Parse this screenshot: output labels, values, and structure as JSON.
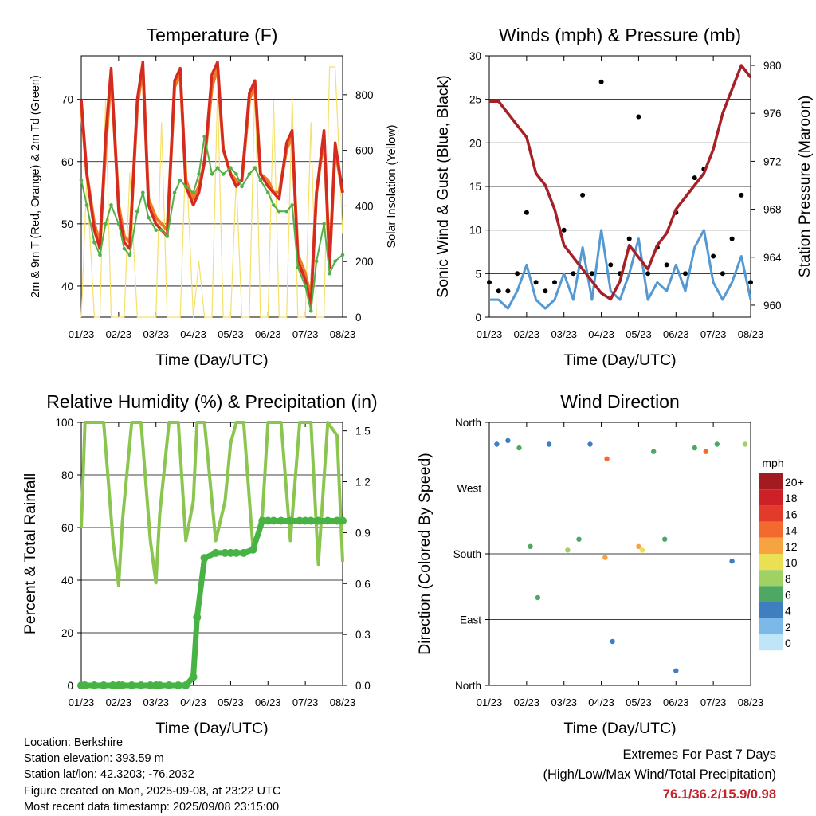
{
  "x_tick_labels": [
    "01/23",
    "02/23",
    "03/23",
    "04/23",
    "05/23",
    "06/23",
    "07/23",
    "08/23"
  ],
  "colors": {
    "temp2m": "#d42a20",
    "temp9m": "#f07a24",
    "dewpoint": "#52b04a",
    "solar": "#f5e06a",
    "wind": "#5599d3",
    "gust": "#000000",
    "pressure": "#a52127",
    "rh": "#8ac64f",
    "precip": "#47b344"
  },
  "chart_data": [
    {
      "id": "temperature",
      "type": "line",
      "title": "Temperature (F)",
      "xlabel": "Time (Day/UTC)",
      "ylabel": "2m & 9m T (Red, Orange) & 2m Td (Green)",
      "y2label": "Solar Insolation (Yellow)",
      "ylim": [
        35,
        77
      ],
      "y2lim": [
        0,
        940
      ],
      "yticks": [
        40,
        50,
        60,
        70
      ],
      "y2ticks": [
        0,
        200,
        400,
        600,
        800
      ],
      "x": [
        0,
        0.15,
        0.35,
        0.5,
        0.65,
        0.8,
        1.0,
        1.15,
        1.3,
        1.5,
        1.65,
        1.8,
        2.0,
        2.15,
        2.3,
        2.5,
        2.65,
        2.8,
        3.0,
        3.15,
        3.3,
        3.5,
        3.65,
        3.8,
        4.0,
        4.15,
        4.3,
        4.5,
        4.65,
        4.8,
        5.0,
        5.15,
        5.3,
        5.5,
        5.65,
        5.8,
        6.0,
        6.15,
        6.3,
        6.5,
        6.65,
        6.8,
        7.0
      ],
      "series": [
        {
          "name": "2m T",
          "values": [
            70,
            58,
            49,
            46,
            64,
            75,
            52,
            47,
            46,
            70,
            76,
            53,
            50,
            49,
            48,
            73,
            75,
            56,
            53,
            55,
            60,
            74,
            76,
            62,
            58,
            56,
            57,
            71,
            73,
            58,
            56,
            55,
            54,
            63,
            65,
            44,
            41,
            37,
            55,
            65,
            43,
            63,
            55
          ]
        },
        {
          "name": "9m T",
          "values": [
            69,
            58,
            50,
            47,
            62,
            74,
            53,
            48,
            47,
            69,
            75,
            54,
            51,
            50,
            49,
            72,
            74,
            57,
            54,
            56,
            60,
            72,
            75,
            62,
            58,
            57,
            57,
            70,
            72,
            58,
            57,
            55,
            55,
            62,
            64,
            45,
            42,
            38,
            55,
            64,
            44,
            62,
            55
          ]
        },
        {
          "name": "2m Td",
          "values": [
            57,
            53,
            47,
            45,
            50,
            53,
            50,
            46,
            45,
            52,
            55,
            51,
            49,
            49,
            48,
            55,
            57,
            56,
            55,
            58,
            64,
            58,
            59,
            58,
            59,
            58,
            56,
            58,
            59,
            57,
            55,
            53,
            52,
            52,
            53,
            43,
            40,
            36,
            44,
            50,
            42,
            44,
            45
          ]
        },
        {
          "name": "Solar",
          "axis": "right",
          "values": [
            0,
            500,
            0,
            0,
            780,
            0,
            0,
            0,
            520,
            0,
            0,
            0,
            0,
            700,
            0,
            0,
            0,
            600,
            0,
            200,
            0,
            0,
            820,
            0,
            0,
            500,
            0,
            0,
            850,
            0,
            0,
            780,
            0,
            0,
            790,
            0,
            0,
            700,
            0,
            0,
            900,
            900,
            300
          ]
        }
      ]
    },
    {
      "id": "winds",
      "type": "line",
      "title": "Winds (mph) & Pressure (mb)",
      "xlabel": "Time (Day/UTC)",
      "ylabel": "Sonic Wind & Gust (Blue, Black)",
      "y2label": "Station Pressure (Maroon)",
      "ylim": [
        0,
        30
      ],
      "y2lim": [
        959,
        980.8
      ],
      "yticks": [
        0,
        5,
        10,
        15,
        20,
        25,
        30
      ],
      "y2ticks": [
        960,
        964,
        968,
        972,
        976,
        980
      ],
      "x": [
        0,
        0.25,
        0.5,
        0.75,
        1.0,
        1.25,
        1.5,
        1.75,
        2.0,
        2.25,
        2.5,
        2.75,
        3.0,
        3.25,
        3.5,
        3.75,
        4.0,
        4.25,
        4.5,
        4.75,
        5.0,
        5.25,
        5.5,
        5.75,
        6.0,
        6.25,
        6.5,
        6.75,
        7.0
      ],
      "series": [
        {
          "name": "Wind",
          "values": [
            2,
            2,
            1,
            3,
            6,
            2,
            1,
            2,
            5,
            2,
            8,
            2,
            10,
            3,
            2,
            5,
            9,
            2,
            4,
            3,
            6,
            3,
            8,
            10,
            4,
            2,
            4,
            7,
            2
          ]
        },
        {
          "name": "Gust",
          "values": [
            4,
            3,
            3,
            5,
            12,
            4,
            3,
            4,
            10,
            5,
            14,
            5,
            27,
            6,
            5,
            9,
            23,
            5,
            8,
            6,
            12,
            5,
            16,
            17,
            7,
            5,
            9,
            14,
            4
          ]
        },
        {
          "name": "Pressure",
          "axis": "right",
          "values": [
            977,
            977,
            976,
            975,
            974,
            971,
            970,
            968,
            965,
            964,
            963,
            962,
            961,
            960.5,
            962,
            965,
            964,
            963,
            965,
            966,
            968,
            969,
            970,
            971,
            973,
            976,
            978,
            980,
            979
          ]
        }
      ]
    },
    {
      "id": "humidity",
      "type": "line",
      "title": "Relative Humidity (%) & Precipitation (in)",
      "xlabel": "Time (Day/UTC)",
      "ylabel": "Percent & Total Rainfall",
      "ylim": [
        0,
        100
      ],
      "y2lim": [
        0,
        1.55
      ],
      "yticks": [
        0,
        20,
        40,
        60,
        80,
        100
      ],
      "y2ticks": [
        "0.0",
        "0.3",
        "0.6",
        "0.9",
        "1.2",
        "1.5"
      ],
      "x": [
        0,
        0.1,
        0.35,
        0.6,
        0.85,
        1.0,
        1.1,
        1.35,
        1.6,
        1.85,
        2.0,
        2.1,
        2.35,
        2.6,
        2.8,
        3.0,
        3.1,
        3.3,
        3.6,
        3.85,
        4.0,
        4.15,
        4.35,
        4.6,
        4.85,
        5.0,
        5.15,
        5.35,
        5.6,
        5.85,
        6.0,
        6.15,
        6.35,
        6.6,
        6.85,
        7.0
      ],
      "series": [
        {
          "name": "RH",
          "values": [
            60,
            100,
            100,
            100,
            55,
            38,
            62,
            100,
            100,
            55,
            39,
            65,
            100,
            100,
            55,
            70,
            100,
            100,
            55,
            70,
            92,
            100,
            100,
            52,
            65,
            100,
            100,
            100,
            55,
            100,
            100,
            100,
            46,
            100,
            95,
            47
          ]
        },
        {
          "name": "Precip",
          "axis": "right",
          "values": [
            0,
            0,
            0,
            0,
            0,
            0,
            0,
            0,
            0,
            0,
            0,
            0,
            0,
            0,
            0,
            0.05,
            0.4,
            0.75,
            0.78,
            0.78,
            0.78,
            0.78,
            0.78,
            0.8,
            0.97,
            0.97,
            0.97,
            0.97,
            0.97,
            0.97,
            0.97,
            0.97,
            0.97,
            0.97,
            0.97,
            0.97
          ]
        }
      ]
    },
    {
      "id": "direction",
      "type": "scatter",
      "title": "Wind Direction",
      "xlabel": "Time (Day/UTC)",
      "ylabel": "Direction (Colored By Speed)",
      "ylim": [
        0,
        360
      ],
      "ytick_labels": [
        "North",
        "East",
        "South",
        "West",
        "North"
      ],
      "legend_title": "mph",
      "legend_labels": [
        "20+",
        "18",
        "16",
        "14",
        "12",
        "10",
        "8",
        "6",
        "4",
        "2",
        "0"
      ],
      "legend_colors": [
        "#a21b20",
        "#cc2227",
        "#e23b2b",
        "#f26a2e",
        "#f7a341",
        "#ebe054",
        "#9fd163",
        "#4ea863",
        "#3f7fc0",
        "#7cb9e8",
        "#bfe5f8"
      ],
      "points": [
        {
          "x": 0.2,
          "y": 330,
          "s": 3
        },
        {
          "x": 0.5,
          "y": 335,
          "s": 4
        },
        {
          "x": 0.8,
          "y": 325,
          "s": 5
        },
        {
          "x": 1.1,
          "y": 190,
          "s": 6
        },
        {
          "x": 1.3,
          "y": 120,
          "s": 6
        },
        {
          "x": 1.6,
          "y": 330,
          "s": 4
        },
        {
          "x": 2.1,
          "y": 185,
          "s": 8
        },
        {
          "x": 2.4,
          "y": 200,
          "s": 6
        },
        {
          "x": 2.7,
          "y": 330,
          "s": 3
        },
        {
          "x": 3.1,
          "y": 175,
          "s": 12
        },
        {
          "x": 3.15,
          "y": 310,
          "s": 14
        },
        {
          "x": 3.3,
          "y": 60,
          "s": 3
        },
        {
          "x": 4.0,
          "y": 190,
          "s": 11
        },
        {
          "x": 4.1,
          "y": 185,
          "s": 9
        },
        {
          "x": 4.4,
          "y": 320,
          "s": 6
        },
        {
          "x": 4.7,
          "y": 200,
          "s": 5
        },
        {
          "x": 5.0,
          "y": 20,
          "s": 4
        },
        {
          "x": 5.5,
          "y": 325,
          "s": 5
        },
        {
          "x": 5.8,
          "y": 320,
          "s": 13
        },
        {
          "x": 6.1,
          "y": 330,
          "s": 5
        },
        {
          "x": 6.5,
          "y": 170,
          "s": 4
        },
        {
          "x": 6.85,
          "y": 330,
          "s": 7
        }
      ]
    }
  ],
  "info": {
    "location": "Location: Berkshire",
    "elevation": "Station elevation: 393.59 m",
    "latlon": "Station lat/lon: 42.3203; -76.2032",
    "created": "Figure created on Mon, 2025-09-08, at 23:22 UTC",
    "latest": "Most recent data timestamp: 2025/09/08 23:15:00"
  },
  "extremes": {
    "title": "Extremes For Past 7 Days",
    "subtitle": "(High/Low/Max Wind/Total Precipitation)",
    "values": "76.1/36.2/15.9/0.98"
  }
}
